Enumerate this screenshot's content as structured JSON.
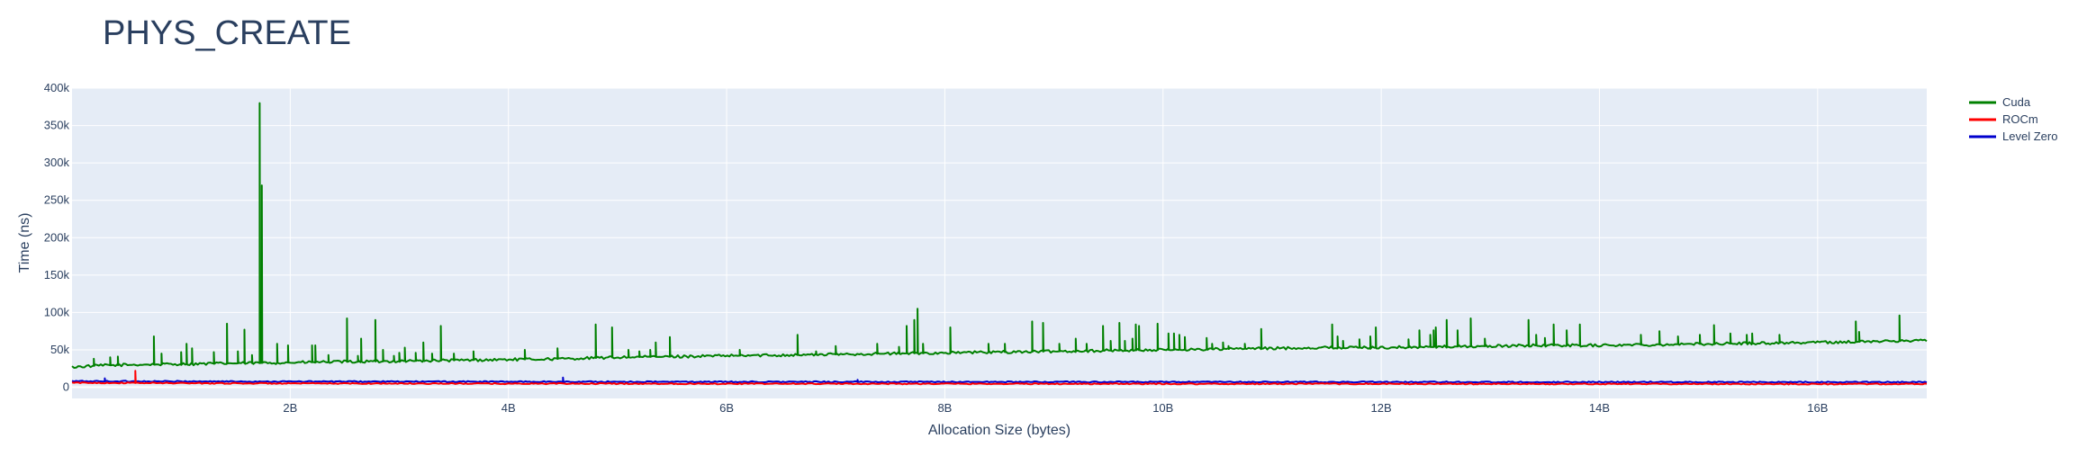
{
  "chart_data": {
    "type": "line",
    "title": "PHYS_CREATE",
    "xlabel": "Allocation Size (bytes)",
    "ylabel": "Time (ns)",
    "xlim": [
      0,
      17
    ],
    "ylim": [
      -15000,
      400000
    ],
    "x_ticks": [
      {
        "value": 2,
        "label": "2B"
      },
      {
        "value": 4,
        "label": "4B"
      },
      {
        "value": 6,
        "label": "6B"
      },
      {
        "value": 8,
        "label": "8B"
      },
      {
        "value": 10,
        "label": "10B"
      },
      {
        "value": 12,
        "label": "12B"
      },
      {
        "value": 14,
        "label": "14B"
      },
      {
        "value": 16,
        "label": "16B"
      }
    ],
    "y_ticks": [
      {
        "value": 0,
        "label": "0"
      },
      {
        "value": 50000,
        "label": "50k"
      },
      {
        "value": 100000,
        "label": "100k"
      },
      {
        "value": 150000,
        "label": "150k"
      },
      {
        "value": 200000,
        "label": "200k"
      },
      {
        "value": 250000,
        "label": "250k"
      },
      {
        "value": 300000,
        "label": "300k"
      },
      {
        "value": 350000,
        "label": "350k"
      },
      {
        "value": 400000,
        "label": "400k"
      }
    ],
    "grid": true,
    "legend_position": "top-right",
    "series": [
      {
        "name": "Cuda",
        "color": "#008000",
        "x": [
          0.0,
          0.25,
          0.5,
          1.0,
          1.5,
          2.0,
          2.5,
          3.0,
          3.5,
          4.0,
          4.5,
          5.0,
          5.5,
          6.0,
          6.5,
          7.0,
          7.5,
          8.0,
          8.5,
          9.0,
          9.5,
          10.0,
          10.5,
          11.0,
          11.5,
          12.0,
          12.5,
          13.0,
          13.5,
          14.0,
          14.5,
          15.0,
          15.5,
          16.0,
          16.5,
          17.0
        ],
        "y": [
          27000,
          29000,
          30000,
          31000,
          32000,
          33000,
          34000,
          35000,
          36000,
          37000,
          38000,
          40000,
          41000,
          42000,
          43000,
          44000,
          45000,
          46000,
          47000,
          48000,
          49000,
          50000,
          51000,
          52000,
          53000,
          53000,
          54000,
          55000,
          56000,
          56000,
          57000,
          58000,
          59000,
          60000,
          61000,
          63000
        ],
        "spikes": [
          [
            0.2,
            38000
          ],
          [
            0.35,
            40000
          ],
          [
            0.42,
            41000
          ],
          [
            0.75,
            68000
          ],
          [
            0.82,
            45000
          ],
          [
            1.0,
            47000
          ],
          [
            1.05,
            58000
          ],
          [
            1.1,
            52000
          ],
          [
            1.3,
            47000
          ],
          [
            1.42,
            85000
          ],
          [
            1.52,
            48000
          ],
          [
            1.58,
            77000
          ],
          [
            1.65,
            43000
          ],
          [
            1.72,
            380000
          ],
          [
            1.74,
            270000
          ],
          [
            1.88,
            58000
          ],
          [
            1.98,
            56000
          ],
          [
            2.2,
            56000
          ],
          [
            2.23,
            56000
          ],
          [
            2.35,
            43000
          ],
          [
            2.52,
            92000
          ],
          [
            2.62,
            42000
          ],
          [
            2.65,
            65000
          ],
          [
            2.78,
            90000
          ],
          [
            2.85,
            50000
          ],
          [
            2.95,
            42000
          ],
          [
            3.0,
            46000
          ],
          [
            3.05,
            53000
          ],
          [
            3.15,
            46000
          ],
          [
            3.22,
            60000
          ],
          [
            3.3,
            45000
          ],
          [
            3.38,
            82000
          ],
          [
            3.5,
            45000
          ],
          [
            3.68,
            48000
          ],
          [
            4.15,
            50000
          ],
          [
            4.45,
            52000
          ],
          [
            4.8,
            84000
          ],
          [
            4.95,
            80000
          ],
          [
            5.1,
            50000
          ],
          [
            5.2,
            48000
          ],
          [
            5.3,
            50000
          ],
          [
            5.35,
            60000
          ],
          [
            5.48,
            67000
          ],
          [
            6.12,
            50000
          ],
          [
            6.65,
            70000
          ],
          [
            6.82,
            48000
          ],
          [
            7.0,
            55000
          ],
          [
            7.38,
            58000
          ],
          [
            7.58,
            54000
          ],
          [
            7.65,
            82000
          ],
          [
            7.72,
            90000
          ],
          [
            7.75,
            105000
          ],
          [
            7.8,
            58000
          ],
          [
            8.05,
            80000
          ],
          [
            8.4,
            58000
          ],
          [
            8.55,
            58000
          ],
          [
            8.8,
            88000
          ],
          [
            8.9,
            86000
          ],
          [
            9.05,
            58000
          ],
          [
            9.2,
            65000
          ],
          [
            9.3,
            58000
          ],
          [
            9.45,
            82000
          ],
          [
            9.52,
            62000
          ],
          [
            9.6,
            86000
          ],
          [
            9.65,
            62000
          ],
          [
            9.72,
            65000
          ],
          [
            9.75,
            84000
          ],
          [
            9.78,
            82000
          ],
          [
            9.95,
            85000
          ],
          [
            10.05,
            72000
          ],
          [
            10.1,
            72000
          ],
          [
            10.15,
            70000
          ],
          [
            10.2,
            67000
          ],
          [
            10.4,
            66000
          ],
          [
            10.45,
            58000
          ],
          [
            10.55,
            60000
          ],
          [
            10.6,
            55000
          ],
          [
            10.75,
            58000
          ],
          [
            10.9,
            78000
          ],
          [
            11.55,
            84000
          ],
          [
            11.6,
            68000
          ],
          [
            11.65,
            62000
          ],
          [
            11.8,
            64000
          ],
          [
            11.9,
            68000
          ],
          [
            11.95,
            80000
          ],
          [
            12.25,
            64000
          ],
          [
            12.35,
            76000
          ],
          [
            12.45,
            70000
          ],
          [
            12.48,
            76000
          ],
          [
            12.5,
            80000
          ],
          [
            12.6,
            90000
          ],
          [
            12.7,
            76000
          ],
          [
            12.82,
            92000
          ],
          [
            12.95,
            65000
          ],
          [
            13.35,
            90000
          ],
          [
            13.42,
            70000
          ],
          [
            13.5,
            66000
          ],
          [
            13.58,
            84000
          ],
          [
            13.7,
            76000
          ],
          [
            13.82,
            84000
          ],
          [
            14.38,
            70000
          ],
          [
            14.55,
            75000
          ],
          [
            14.72,
            68000
          ],
          [
            14.92,
            70000
          ],
          [
            15.05,
            83000
          ],
          [
            15.2,
            72000
          ],
          [
            15.35,
            70000
          ],
          [
            15.4,
            72000
          ],
          [
            15.65,
            70000
          ],
          [
            16.35,
            88000
          ],
          [
            16.38,
            74000
          ],
          [
            16.75,
            96000
          ]
        ]
      },
      {
        "name": "ROCm",
        "color": "#ff0000",
        "x": [
          0.0,
          1.0,
          2.0,
          3.0,
          4.0,
          5.0,
          6.0,
          7.0,
          8.0,
          9.0,
          10.0,
          11.0,
          12.0,
          13.0,
          14.0,
          15.0,
          16.0,
          17.0
        ],
        "y": [
          6000,
          5500,
          5000,
          5000,
          4800,
          4800,
          4700,
          4700,
          4600,
          4600,
          4500,
          4500,
          4500,
          4400,
          4400,
          4400,
          4300,
          4300
        ],
        "spikes": [
          [
            0.58,
            22000
          ]
        ]
      },
      {
        "name": "Level Zero",
        "color": "#0000cd",
        "x": [
          0.0,
          1.0,
          2.0,
          3.0,
          4.0,
          5.0,
          6.0,
          7.0,
          8.0,
          9.0,
          10.0,
          11.0,
          12.0,
          13.0,
          14.0,
          15.0,
          16.0,
          17.0
        ],
        "y": [
          8000,
          7800,
          7600,
          7500,
          7400,
          7300,
          7200,
          7200,
          7100,
          7100,
          7000,
          7000,
          7000,
          6900,
          6900,
          6900,
          6800,
          6800
        ],
        "spikes": [
          [
            0.3,
            12000
          ],
          [
            4.5,
            13000
          ],
          [
            7.2,
            10000
          ]
        ]
      }
    ]
  }
}
